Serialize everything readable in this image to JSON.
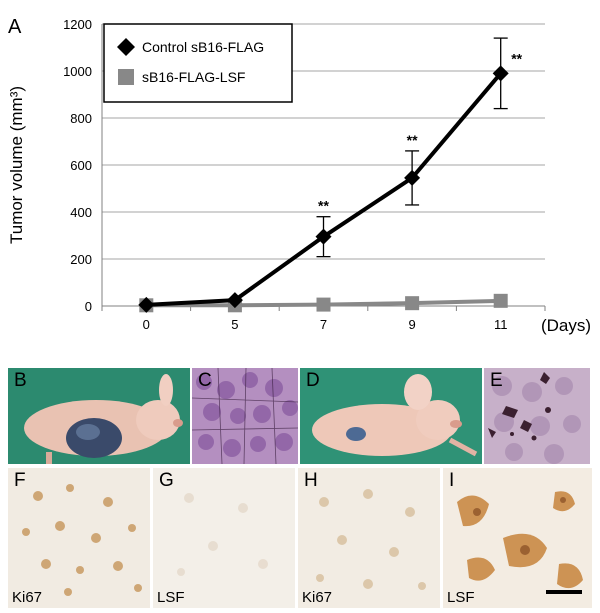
{
  "figure": {
    "panel_A_label": "A",
    "photos": [
      {
        "letter": "B",
        "caption": ""
      },
      {
        "letter": "C",
        "caption": ""
      },
      {
        "letter": "D",
        "caption": ""
      },
      {
        "letter": "E",
        "caption": ""
      },
      {
        "letter": "F",
        "caption": "Ki67"
      },
      {
        "letter": "G",
        "caption": "LSF"
      },
      {
        "letter": "H",
        "caption": "Ki67"
      },
      {
        "letter": "I",
        "caption": "LSF"
      }
    ]
  },
  "chart_data": {
    "type": "line",
    "title": "",
    "xlabel": "(Days)",
    "ylabel": "Tumor volume (mm³)",
    "categories": [
      "0",
      "5",
      "7",
      "9",
      "11"
    ],
    "ylim": [
      0,
      1200
    ],
    "yticks": [
      "0",
      "200",
      "400",
      "600",
      "800",
      "1000",
      "1200"
    ],
    "grid": true,
    "legend_position": "top-left",
    "series": [
      {
        "name": "Control sB16-FLAG",
        "marker": "diamond",
        "color": "#000000",
        "values": [
          5,
          25,
          295,
          545,
          990
        ],
        "errors": [
          0,
          0,
          85,
          115,
          150
        ],
        "significance": [
          "",
          "",
          "**",
          "**",
          "**"
        ]
      },
      {
        "name": "sB16-FLAG-LSF",
        "marker": "square",
        "color": "#888888",
        "values": [
          3,
          3,
          6,
          12,
          22
        ],
        "errors": [
          0,
          0,
          0,
          0,
          0
        ],
        "significance": [
          "",
          "",
          "",
          "",
          ""
        ]
      }
    ]
  }
}
